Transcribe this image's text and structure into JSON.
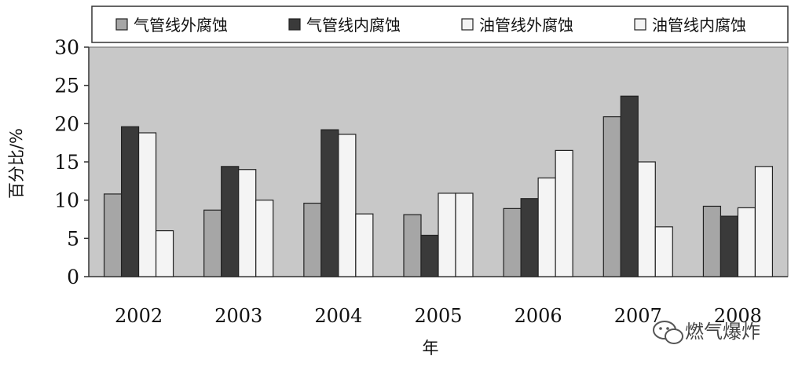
{
  "chart_data": {
    "type": "bar",
    "categories": [
      "2002",
      "2003",
      "2004",
      "2005",
      "2006",
      "2007",
      "2008"
    ],
    "series": [
      {
        "name": "气管线外腐蚀",
        "color": "#a6a6a6",
        "values": [
          10.8,
          8.7,
          9.6,
          8.1,
          8.9,
          20.9,
          9.2
        ]
      },
      {
        "name": "气管线内腐蚀",
        "color": "#3a3a3a",
        "values": [
          19.6,
          14.4,
          19.2,
          5.4,
          10.2,
          23.6,
          7.9
        ]
      },
      {
        "name": "油管线外腐蚀",
        "color": "#f4f4f4",
        "values": [
          18.8,
          14.0,
          18.6,
          10.9,
          12.9,
          15.0,
          9.0
        ]
      },
      {
        "name": "油管线内腐蚀",
        "color": "#f4f4f4",
        "values": [
          6.0,
          10.0,
          8.2,
          10.9,
          16.5,
          6.5,
          14.4
        ]
      }
    ],
    "ylabel": "百分比/%",
    "xlabel": "年",
    "ylim": [
      0,
      30
    ],
    "yticks": [
      0,
      5,
      10,
      15,
      20,
      25,
      30
    ],
    "plot_background": "#c8c8c8",
    "legend_position": "top"
  },
  "watermark": {
    "text": "燃气爆炸",
    "icon": "wechat-icon"
  }
}
